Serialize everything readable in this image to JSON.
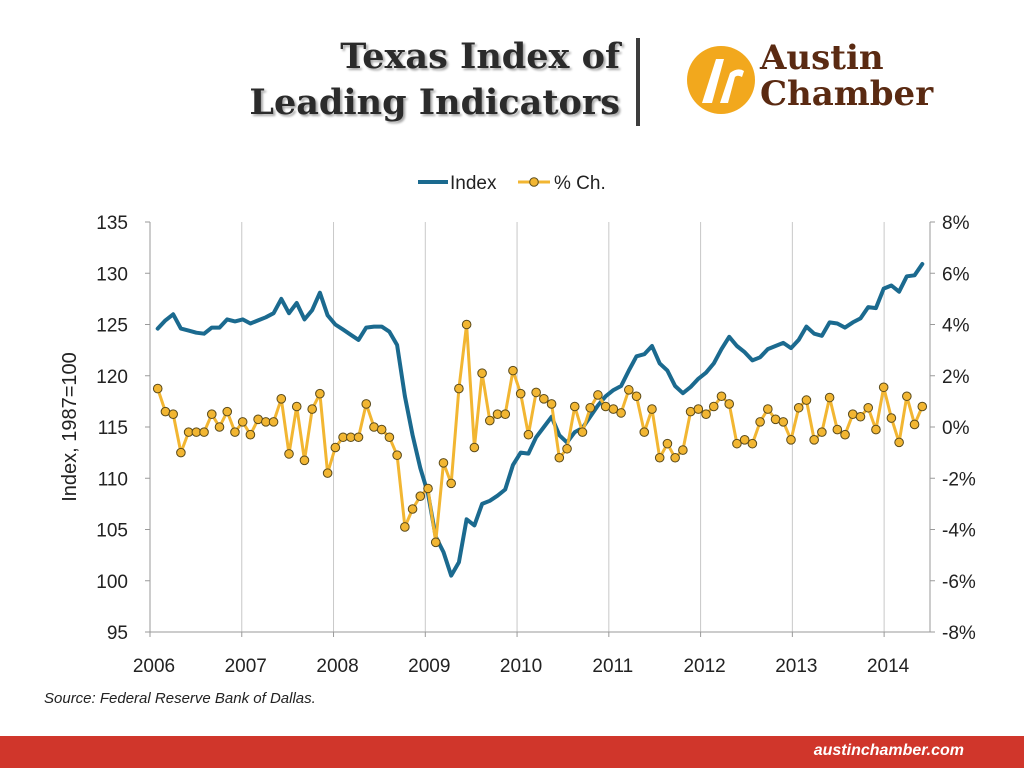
{
  "header": {
    "title_line1": "Texas Index of",
    "title_line2": "Leading Indicators",
    "logo_line1": "Austin",
    "logo_line2": "Chamber",
    "logo_icon": "austin-chamber-logo-icon",
    "logo_color": "#f2a81d",
    "logo_text_color": "#5a2a12"
  },
  "source": "Source:  Federal Reserve Bank of Dallas.",
  "footer": {
    "url": "austinchamber.com",
    "color": "#d0362b"
  },
  "chart_data": {
    "type": "line",
    "ylabel": "Index, 1987=100",
    "ylim": [
      95,
      135
    ],
    "y2lim": [
      -8,
      8
    ],
    "y_ticks": [
      "95",
      "100",
      "105",
      "110",
      "115",
      "120",
      "125",
      "130",
      "135"
    ],
    "y2_ticks": [
      "-8%",
      "-6%",
      "-4%",
      "-2%",
      "0%",
      "2%",
      "4%",
      "6%",
      "8%"
    ],
    "x_ticks": [
      "2006",
      "2007",
      "2008",
      "2009",
      "2010",
      "2011",
      "2012",
      "2013",
      "2014"
    ],
    "legend_position": "top-center",
    "grid": "vertical",
    "series": [
      {
        "name": "Index",
        "axis": "left",
        "color": "#1b6a8f",
        "values": [
          124.6,
          125.4,
          126.0,
          124.6,
          124.4,
          124.2,
          124.1,
          124.7,
          124.7,
          125.5,
          125.3,
          125.5,
          125.1,
          125.4,
          125.7,
          126.1,
          127.5,
          126.1,
          127.1,
          125.5,
          126.4,
          128.1,
          125.9,
          125.0,
          124.5,
          124.0,
          123.5,
          124.7,
          124.8,
          124.8,
          124.3,
          123.0,
          118.0,
          114.2,
          111.0,
          108.5,
          104.3,
          102.8,
          100.5,
          101.8,
          106.0,
          105.4,
          107.5,
          107.8,
          108.3,
          108.9,
          111.3,
          112.5,
          112.4,
          114.0,
          115.0,
          116.0,
          114.2,
          113.5,
          114.5,
          114.9,
          116.0,
          117.1,
          118.0,
          118.6,
          119.0,
          120.5,
          121.9,
          122.1,
          122.9,
          121.2,
          120.5,
          119.0,
          118.3,
          118.9,
          119.7,
          120.3,
          121.2,
          122.6,
          123.8,
          122.9,
          122.3,
          121.5,
          121.8,
          122.6,
          122.9,
          123.2,
          122.7,
          123.5,
          124.8,
          124.1,
          123.9,
          125.2,
          125.1,
          124.7,
          125.2,
          125.6,
          126.7,
          126.6,
          128.5,
          128.8,
          128.2,
          129.7,
          129.8,
          130.9
        ]
      },
      {
        "name": "% Ch.",
        "axis": "right",
        "color": "#f2b632",
        "values": [
          1.5,
          0.6,
          0.5,
          -1.0,
          -0.2,
          -0.2,
          -0.2,
          0.5,
          0.0,
          0.6,
          -0.2,
          0.2,
          -0.3,
          0.3,
          0.2,
          0.2,
          1.1,
          -1.05,
          0.8,
          -1.3,
          0.7,
          1.3,
          -1.8,
          -0.8,
          -0.4,
          -0.4,
          -0.4,
          0.9,
          0.0,
          -0.1,
          -0.4,
          -1.1,
          -3.9,
          -3.2,
          -2.7,
          -2.4,
          -4.5,
          -1.4,
          -2.2,
          1.5,
          4.0,
          -0.8,
          2.1,
          0.25,
          0.5,
          0.5,
          2.2,
          1.3,
          -0.3,
          1.35,
          1.1,
          0.9,
          -1.2,
          -0.85,
          0.8,
          -0.2,
          0.75,
          1.25,
          0.8,
          0.7,
          0.55,
          1.45,
          1.2,
          -0.2,
          0.7,
          -1.2,
          -0.65,
          -1.2,
          -0.9,
          0.6,
          0.7,
          0.5,
          0.8,
          1.2,
          0.9,
          -0.65,
          -0.5,
          -0.65,
          0.2,
          0.7,
          0.3,
          0.2,
          -0.5,
          0.75,
          1.05,
          -0.5,
          -0.2,
          1.15,
          -0.1,
          -0.3,
          0.5,
          0.4,
          0.75,
          -0.1,
          1.55,
          0.35,
          -0.6,
          1.2,
          0.1,
          0.8
        ]
      }
    ]
  }
}
